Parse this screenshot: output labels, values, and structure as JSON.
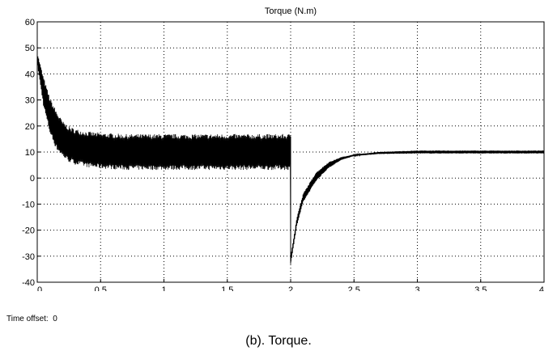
{
  "chart_data": {
    "type": "line",
    "title": "Torque (N.m)",
    "xlabel": "",
    "ylabel": "",
    "xlim": [
      0,
      4
    ],
    "ylim": [
      -40,
      60
    ],
    "x_ticks": [
      "0",
      "0.5",
      "1",
      "1.5",
      "2",
      "2.5",
      "3",
      "3.5",
      "4"
    ],
    "y_ticks": [
      "-40",
      "-30",
      "-20",
      "-10",
      "0",
      "10",
      "20",
      "30",
      "40",
      "50",
      "60"
    ],
    "grid": true,
    "grid_style": "dotted",
    "line_color": "#000000",
    "series": [
      {
        "x": [
          0,
          0.05,
          0.1,
          0.15,
          0.2,
          0.25,
          0.3,
          0.4,
          0.5,
          0.7,
          1.0,
          1.5,
          1.999,
          2.0,
          2.05,
          2.1,
          2.2,
          2.3,
          2.4,
          2.5,
          2.7,
          3.0,
          3.5,
          4.0
        ],
        "y_upper": [
          48,
          38,
          30,
          25,
          21,
          19,
          18,
          17,
          16.5,
          16,
          16,
          16,
          16,
          -30,
          -15,
          -6,
          2,
          6,
          8,
          9,
          10,
          10.5,
          10.5,
          10.5
        ],
        "y_lower": [
          44,
          28,
          18,
          12,
          9,
          7,
          6,
          5,
          4.5,
          4,
          4,
          4,
          4,
          -33,
          -18,
          -9,
          -1,
          4,
          7,
          8.5,
          9.3,
          9.5,
          9.5,
          9.5
        ]
      }
    ]
  },
  "footer": {
    "time_offset": "Time offset:  0",
    "caption": "(b). Torque."
  }
}
